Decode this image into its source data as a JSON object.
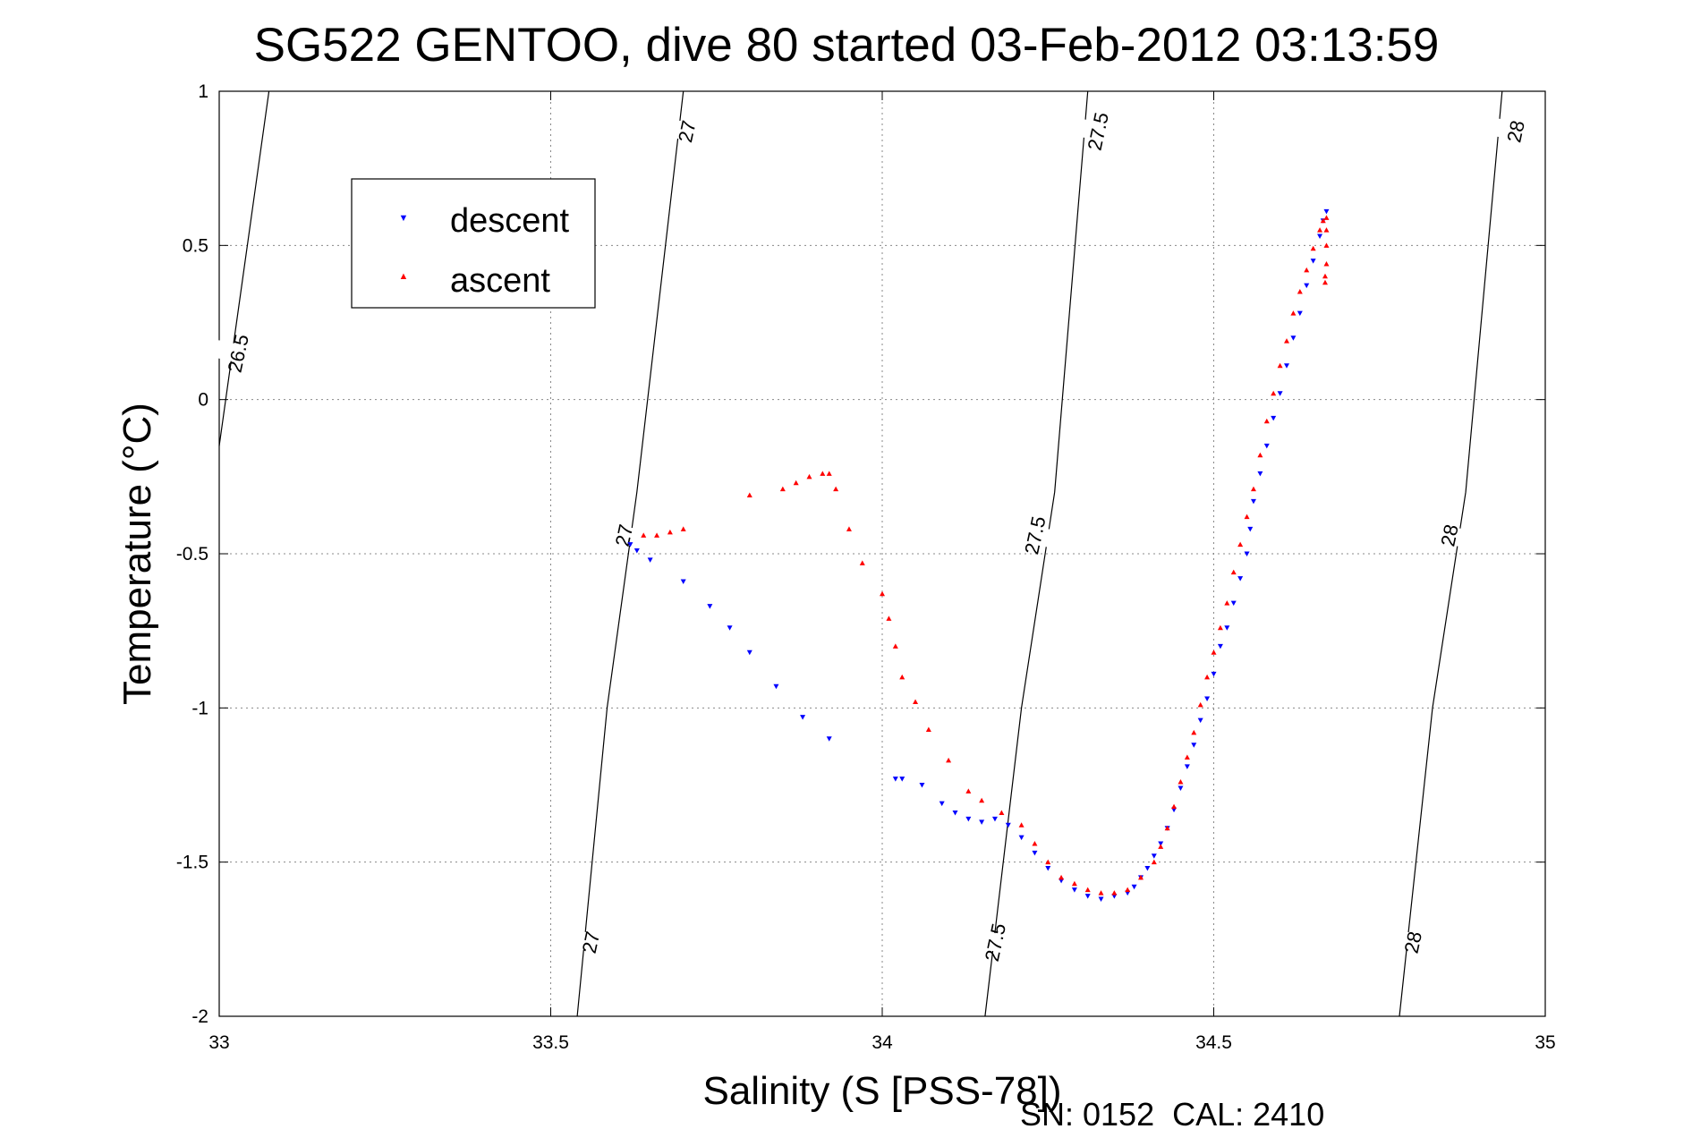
{
  "chart_data": {
    "type": "scatter",
    "title": "SG522 GENTOO, dive 80 started 03-Feb-2012 03:13:59",
    "xlabel": "Salinity (S [PSS-78])",
    "ylabel": "Temperature (°C)",
    "xlim": [
      33,
      35
    ],
    "ylim": [
      -2,
      1
    ],
    "x_ticks": [
      33,
      33.5,
      34,
      34.5,
      35
    ],
    "y_ticks": [
      1,
      0.5,
      0,
      -0.5,
      -1,
      -1.5,
      -2
    ],
    "x_tick_labels": [
      "33",
      "33.5",
      "34",
      "34.5",
      "35"
    ],
    "y_tick_labels": [
      "1",
      "0.5",
      "0",
      "-0.5",
      "-1",
      "-1.5",
      "-2"
    ],
    "grid": true,
    "legend_position": "top-left",
    "footer": "SN: 0152  CAL: 2410",
    "colors": {
      "descent": "#0000ff",
      "ascent": "#ff0000",
      "contour": "#000000",
      "grid": "#888888"
    },
    "series": [
      {
        "name": "descent",
        "marker": "triangle-down",
        "points": [
          [
            33.62,
            -0.47
          ],
          [
            33.63,
            -0.49
          ],
          [
            33.65,
            -0.52
          ],
          [
            33.7,
            -0.59
          ],
          [
            33.74,
            -0.67
          ],
          [
            33.77,
            -0.74
          ],
          [
            33.8,
            -0.82
          ],
          [
            33.84,
            -0.93
          ],
          [
            33.88,
            -1.03
          ],
          [
            33.92,
            -1.1
          ],
          [
            34.02,
            -1.23
          ],
          [
            34.03,
            -1.23
          ],
          [
            34.06,
            -1.25
          ],
          [
            34.09,
            -1.31
          ],
          [
            34.11,
            -1.34
          ],
          [
            34.13,
            -1.36
          ],
          [
            34.15,
            -1.37
          ],
          [
            34.17,
            -1.36
          ],
          [
            34.19,
            -1.38
          ],
          [
            34.21,
            -1.42
          ],
          [
            34.23,
            -1.47
          ],
          [
            34.25,
            -1.52
          ],
          [
            34.27,
            -1.56
          ],
          [
            34.29,
            -1.59
          ],
          [
            34.31,
            -1.61
          ],
          [
            34.33,
            -1.62
          ],
          [
            34.35,
            -1.61
          ],
          [
            34.37,
            -1.6
          ],
          [
            34.38,
            -1.58
          ],
          [
            34.39,
            -1.55
          ],
          [
            34.4,
            -1.52
          ],
          [
            34.41,
            -1.48
          ],
          [
            34.42,
            -1.44
          ],
          [
            34.43,
            -1.39
          ],
          [
            34.44,
            -1.33
          ],
          [
            34.45,
            -1.26
          ],
          [
            34.46,
            -1.19
          ],
          [
            34.47,
            -1.12
          ],
          [
            34.48,
            -1.04
          ],
          [
            34.49,
            -0.97
          ],
          [
            34.5,
            -0.89
          ],
          [
            34.51,
            -0.8
          ],
          [
            34.52,
            -0.74
          ],
          [
            34.53,
            -0.66
          ],
          [
            34.54,
            -0.58
          ],
          [
            34.55,
            -0.5
          ],
          [
            34.555,
            -0.42
          ],
          [
            34.56,
            -0.33
          ],
          [
            34.57,
            -0.24
          ],
          [
            34.58,
            -0.15
          ],
          [
            34.59,
            -0.06
          ],
          [
            34.6,
            0.02
          ],
          [
            34.61,
            0.11
          ],
          [
            34.62,
            0.2
          ],
          [
            34.63,
            0.28
          ],
          [
            34.64,
            0.37
          ],
          [
            34.65,
            0.45
          ],
          [
            34.66,
            0.53
          ],
          [
            34.665,
            0.58
          ],
          [
            34.67,
            0.61
          ]
        ]
      },
      {
        "name": "ascent",
        "marker": "triangle-up",
        "points": [
          [
            33.64,
            -0.44
          ],
          [
            33.66,
            -0.44
          ],
          [
            33.68,
            -0.43
          ],
          [
            33.7,
            -0.42
          ],
          [
            33.8,
            -0.31
          ],
          [
            33.85,
            -0.29
          ],
          [
            33.87,
            -0.27
          ],
          [
            33.89,
            -0.25
          ],
          [
            33.91,
            -0.24
          ],
          [
            33.92,
            -0.24
          ],
          [
            33.93,
            -0.29
          ],
          [
            33.95,
            -0.42
          ],
          [
            33.97,
            -0.53
          ],
          [
            34.0,
            -0.63
          ],
          [
            34.01,
            -0.71
          ],
          [
            34.02,
            -0.8
          ],
          [
            34.03,
            -0.9
          ],
          [
            34.05,
            -0.98
          ],
          [
            34.07,
            -1.07
          ],
          [
            34.1,
            -1.17
          ],
          [
            34.13,
            -1.27
          ],
          [
            34.15,
            -1.3
          ],
          [
            34.18,
            -1.34
          ],
          [
            34.21,
            -1.38
          ],
          [
            34.23,
            -1.44
          ],
          [
            34.25,
            -1.5
          ],
          [
            34.27,
            -1.55
          ],
          [
            34.29,
            -1.57
          ],
          [
            34.31,
            -1.59
          ],
          [
            34.33,
            -1.6
          ],
          [
            34.35,
            -1.6
          ],
          [
            34.37,
            -1.59
          ],
          [
            34.39,
            -1.55
          ],
          [
            34.41,
            -1.5
          ],
          [
            34.42,
            -1.45
          ],
          [
            34.43,
            -1.39
          ],
          [
            34.44,
            -1.32
          ],
          [
            34.45,
            -1.24
          ],
          [
            34.46,
            -1.16
          ],
          [
            34.47,
            -1.08
          ],
          [
            34.48,
            -0.99
          ],
          [
            34.49,
            -0.9
          ],
          [
            34.5,
            -0.82
          ],
          [
            34.51,
            -0.74
          ],
          [
            34.52,
            -0.66
          ],
          [
            34.53,
            -0.56
          ],
          [
            34.54,
            -0.47
          ],
          [
            34.55,
            -0.38
          ],
          [
            34.56,
            -0.29
          ],
          [
            34.57,
            -0.18
          ],
          [
            34.58,
            -0.07
          ],
          [
            34.59,
            0.02
          ],
          [
            34.6,
            0.11
          ],
          [
            34.61,
            0.19
          ],
          [
            34.62,
            0.28
          ],
          [
            34.63,
            0.35
          ],
          [
            34.64,
            0.42
          ],
          [
            34.65,
            0.49
          ],
          [
            34.66,
            0.55
          ],
          [
            34.665,
            0.58
          ],
          [
            34.67,
            0.59
          ],
          [
            34.67,
            0.55
          ],
          [
            34.67,
            0.5
          ],
          [
            34.67,
            0.44
          ],
          [
            34.668,
            0.4
          ],
          [
            34.668,
            0.38
          ]
        ]
      }
    ],
    "density_contours": [
      {
        "label": "26.5",
        "points": [
          [
            33.0,
            -0.15
          ],
          [
            33.075,
            1.0
          ]
        ],
        "label_positions": [
          [
            33.028,
            0.15
          ]
        ]
      },
      {
        "label": "27",
        "points": [
          [
            33.54,
            -2.0
          ],
          [
            33.585,
            -1.0
          ],
          [
            33.63,
            -0.3
          ],
          [
            33.7,
            1.0
          ]
        ],
        "label_positions": [
          [
            33.56,
            -1.76
          ],
          [
            33.61,
            -0.44
          ],
          [
            33.705,
            0.87
          ]
        ]
      },
      {
        "label": "27.5",
        "points": [
          [
            34.155,
            -2.0
          ],
          [
            34.21,
            -1.0
          ],
          [
            34.26,
            -0.3
          ],
          [
            34.31,
            1.0
          ]
        ],
        "label_positions": [
          [
            34.17,
            -1.76
          ],
          [
            34.23,
            -0.44
          ],
          [
            34.325,
            0.87
          ]
        ]
      },
      {
        "label": "28",
        "points": [
          [
            34.78,
            -2.0
          ],
          [
            34.83,
            -1.0
          ],
          [
            34.88,
            -0.3
          ],
          [
            34.935,
            1.0
          ]
        ],
        "label_positions": [
          [
            34.8,
            -1.76
          ],
          [
            34.855,
            -0.44
          ],
          [
            34.955,
            0.87
          ]
        ]
      }
    ]
  }
}
